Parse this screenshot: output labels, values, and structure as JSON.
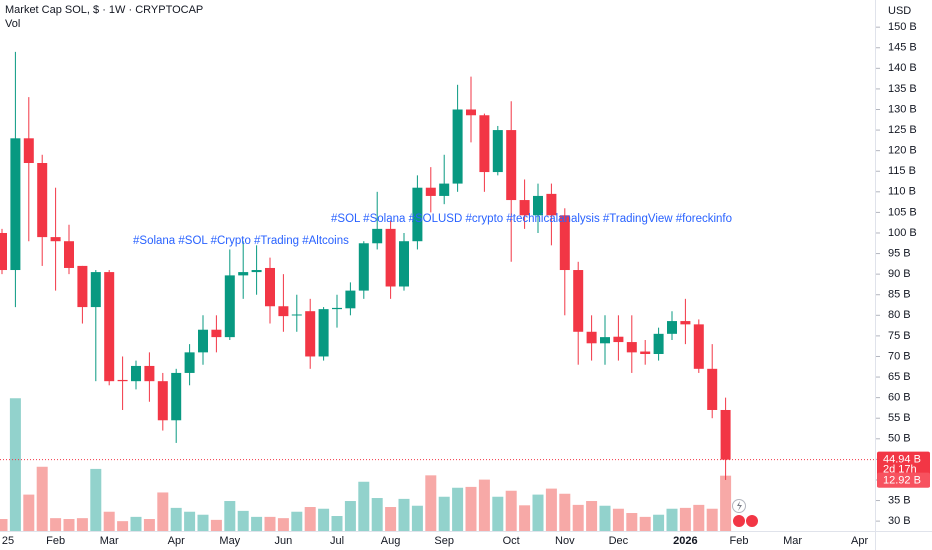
{
  "chart_data": {
    "type": "candlestick",
    "title": "Market Cap SOL, $ · 1W · CRYPTOCAP",
    "volume_title": "Vol",
    "currency": "USD",
    "annotations": [
      "#Solana #SOL #Crypto #Trading #Altcoins",
      "#SOL #Solana #SOLUSD #crypto #technicalanalysis #TradingView #foreckinfo"
    ],
    "categories": [
      "25",
      null,
      null,
      null,
      "Feb",
      null,
      null,
      null,
      "Mar",
      null,
      null,
      null,
      null,
      "Apr",
      null,
      null,
      null,
      "May",
      null,
      null,
      null,
      "Jun",
      null,
      null,
      null,
      "Jul",
      null,
      null,
      null,
      "Aug",
      null,
      null,
      null,
      "Sep",
      null,
      null,
      null,
      null,
      "Oct",
      null,
      null,
      null,
      "Nov",
      null,
      null,
      null,
      "Dec",
      null,
      null,
      null,
      null,
      "2026",
      null,
      null,
      null,
      "Feb",
      null,
      null,
      null,
      "Mar",
      null,
      null,
      null,
      null,
      "Apr"
    ],
    "open": [
      100,
      91,
      123,
      117,
      99,
      98,
      92,
      82,
      90.5,
      64.3,
      64,
      67.7,
      64,
      54.5,
      66,
      71,
      76.5,
      74.7,
      89.7,
      90.5,
      91.5,
      82.2,
      80,
      81,
      70,
      81.5,
      81.7,
      86,
      97.5,
      101,
      87,
      98,
      111,
      109,
      112,
      130,
      128.6,
      114.8,
      125,
      108,
      104.3,
      109.5,
      104.3,
      91,
      76,
      73.2,
      74.8,
      73.5,
      71.2,
      70.6,
      75.5,
      78.6,
      77.8,
      67,
      57,
      null,
      null,
      null,
      null,
      null,
      null,
      null,
      null,
      null,
      null
    ],
    "high": [
      101,
      144,
      133,
      119,
      111,
      102,
      92,
      91,
      91,
      70,
      69,
      71,
      66,
      67,
      73,
      80,
      80,
      96,
      98,
      97,
      94,
      90,
      85,
      84,
      82,
      85,
      88,
      98,
      110,
      103,
      100,
      114,
      116,
      119,
      136,
      138,
      129,
      126,
      132,
      113,
      112,
      112,
      106,
      93,
      80,
      80,
      80,
      80,
      74,
      77,
      81,
      84,
      79,
      73,
      60,
      null,
      null,
      null,
      null,
      null,
      null,
      null,
      null,
      null,
      null
    ],
    "low": [
      90,
      82,
      98,
      92,
      86,
      90,
      78,
      64,
      63,
      57,
      62,
      59,
      52,
      49,
      63,
      68,
      71,
      74,
      84,
      85,
      78,
      76,
      76,
      67,
      69,
      77,
      80,
      84,
      96,
      84,
      86,
      96,
      105,
      107,
      110,
      122,
      110,
      114,
      93,
      101,
      100,
      97,
      80,
      68,
      69,
      68,
      69,
      66,
      68,
      69,
      74,
      73,
      66,
      55,
      40,
      null,
      null,
      null,
      null,
      null,
      null,
      null,
      null,
      null,
      null
    ],
    "close": [
      91,
      123,
      117,
      99,
      98,
      91.5,
      82,
      90.5,
      64,
      64,
      67.7,
      64,
      54.5,
      66,
      71,
      76.5,
      74.7,
      89.7,
      90.5,
      91,
      82.2,
      79.8,
      80.2,
      70,
      81.5,
      81.8,
      86,
      97.5,
      101,
      87,
      98,
      111,
      109,
      112,
      130,
      128.6,
      114.8,
      125,
      108,
      104.3,
      109,
      104.3,
      91,
      76,
      73.2,
      74.7,
      73.5,
      71,
      70.6,
      75.5,
      78.6,
      77.8,
      67,
      57,
      44.94,
      null,
      null,
      null,
      null,
      null,
      null,
      null,
      null,
      null,
      null
    ],
    "volume": [
      2.8,
      31,
      8.5,
      15,
      3,
      2.8,
      3,
      14.5,
      4.5,
      2.3,
      3.3,
      2.8,
      9,
      5.4,
      4.5,
      3.8,
      2.6,
      7,
      4.7,
      3.3,
      3.3,
      3,
      4.5,
      5.6,
      5.2,
      3.5,
      7,
      11.5,
      7.7,
      5.6,
      7.5,
      5.9,
      13,
      8,
      10.1,
      10.3,
      12,
      8,
      9.4,
      6,
      8.5,
      9.9,
      8.7,
      6.1,
      7,
      5.9,
      5.2,
      4.2,
      3.3,
      3.8,
      5.2,
      5.4,
      6.1,
      5.2,
      12.92,
      null,
      null,
      null,
      null,
      null,
      null,
      null,
      null,
      null,
      null
    ],
    "last_price": {
      "value": 44.94,
      "label": "44.94 B"
    },
    "last_volume": {
      "value": 12.92,
      "label": "12.92 B"
    },
    "countdown": "2d 17h",
    "ylim": [
      25.9,
      156.6
    ],
    "vlim": [
      0,
      124
    ],
    "yticks": [
      {
        "value": 30,
        "label": "30 B"
      },
      {
        "value": 35,
        "label": "35 B"
      },
      {
        "value": 40,
        "label": "40 B"
      },
      {
        "value": 45,
        "label": "45 B"
      },
      {
        "value": 50,
        "label": "50 B"
      },
      {
        "value": 55,
        "label": "55 B"
      },
      {
        "value": 60,
        "label": "60 B"
      },
      {
        "value": 65,
        "label": "65 B"
      },
      {
        "value": 70,
        "label": "70 B"
      },
      {
        "value": 75,
        "label": "75 B"
      },
      {
        "value": 80,
        "label": "80 B"
      },
      {
        "value": 85,
        "label": "85 B"
      },
      {
        "value": 90,
        "label": "90 B"
      },
      {
        "value": 95,
        "label": "95 B"
      },
      {
        "value": 100,
        "label": "100 B"
      },
      {
        "value": 105,
        "label": "105 B"
      },
      {
        "value": 110,
        "label": "110 B"
      },
      {
        "value": 115,
        "label": "115 B"
      },
      {
        "value": 120,
        "label": "120 B"
      },
      {
        "value": 125,
        "label": "125 B"
      },
      {
        "value": 130,
        "label": "130 B"
      },
      {
        "value": 135,
        "label": "135 B"
      },
      {
        "value": 140,
        "label": "140 B"
      },
      {
        "value": 145,
        "label": "145 B"
      },
      {
        "value": 150,
        "label": "150 B"
      }
    ],
    "up_color": "#089981",
    "down_color": "#f23645",
    "volume_up_color": "#92d2cc",
    "volume_down_color": "#f7a9a7"
  }
}
